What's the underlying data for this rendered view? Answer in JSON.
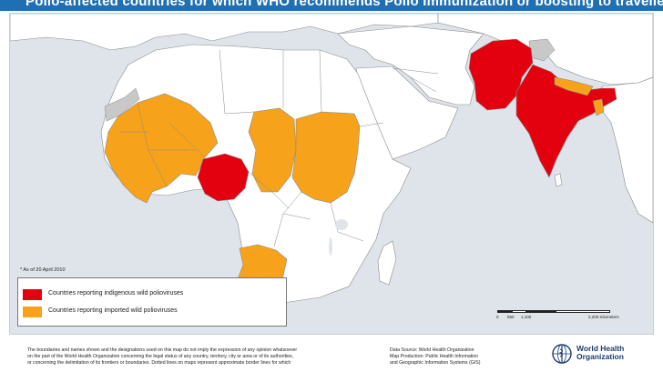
{
  "title": "Polio-affected countries for which WHO recommends Polio immunization or boosting to travellers",
  "date_note": "* As of 20 April 2010",
  "legend": [
    {
      "label": "Countries reporting indigenous wild polioviruses",
      "color": "#e3000f"
    },
    {
      "label": "Countries reporting imported wild polioviruses",
      "color": "#f7a21b"
    }
  ],
  "colors": {
    "ocean": "#dfe4ea",
    "land": "#ffffff",
    "no_data": "#c8c8c8",
    "border": "#8a8a8a",
    "title_bar": "#1f6fb3"
  },
  "map": {
    "indigenous": [
      "Nigeria",
      "Pakistan",
      "Afghanistan",
      "India"
    ],
    "imported": [
      "Mauritania",
      "Mali",
      "Niger",
      "Senegal",
      "Guinea",
      "Sierra Leone",
      "Liberia",
      "Cote d'Ivoire",
      "Burkina Faso",
      "Chad",
      "Sudan",
      "Angola",
      "Nepal",
      "Bangladesh"
    ]
  },
  "scale": {
    "ticks": [
      "0",
      "550",
      "1,100",
      "2,200 Kilometers"
    ]
  },
  "disclaimer": [
    "The boundaries and names shown and the designations used on this map do not imply the expression of any opinion whatsoever",
    "on the part of the World Health Organization concerning the legal status of any country, territory, city or area or of its authorities,",
    "or concerning the delimitation of its frontiers or boundaries.  Dotted lines on maps represent approximate border lines for which"
  ],
  "source": [
    "Data Source: World Health Organization",
    "Map Production: Public Health Information",
    "and Geographic Information Systems (GIS)"
  ],
  "who": {
    "line1": "World Health",
    "line2": "Organization"
  }
}
